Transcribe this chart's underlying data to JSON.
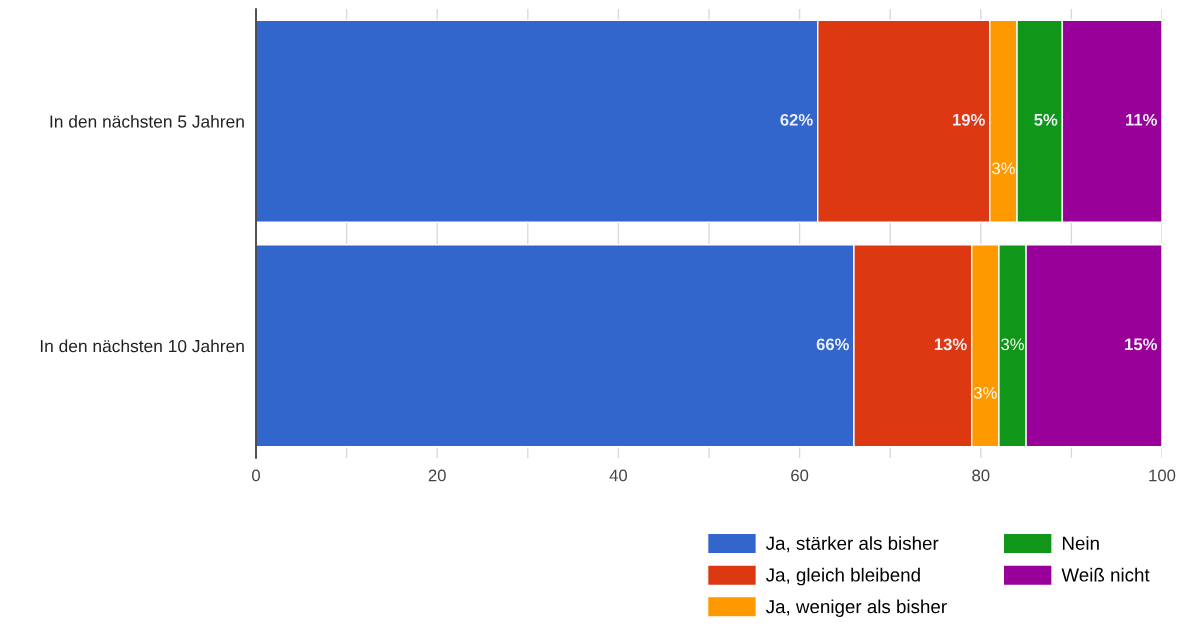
{
  "chart_data": {
    "type": "bar",
    "orientation": "horizontal",
    "stacked": true,
    "categories": [
      "In den nächsten 5 Jahren",
      "In den nächsten 10 Jahren"
    ],
    "series": [
      {
        "name": "Ja, stärker als bisher",
        "color": "#3366cc",
        "values": [
          62,
          66
        ],
        "value_labels": [
          "62%",
          "66%"
        ]
      },
      {
        "name": "Ja, gleich bleibend",
        "color": "#dc3912",
        "values": [
          19,
          13
        ],
        "value_labels": [
          "19%",
          "13%"
        ]
      },
      {
        "name": "Ja, weniger als bisher",
        "color": "#ff9900",
        "values": [
          3,
          3
        ],
        "value_labels": [
          "3%",
          "3%"
        ]
      },
      {
        "name": "Nein",
        "color": "#109618",
        "values": [
          5,
          3
        ],
        "value_labels": [
          "5%",
          "3%"
        ]
      },
      {
        "name": "Weiß nicht",
        "color": "#990099",
        "values": [
          11,
          15
        ],
        "value_labels": [
          "11%",
          "15%"
        ]
      }
    ],
    "xlim": [
      0,
      100
    ],
    "xticks": [
      0,
      {
        "value": 10,
        "label": null
      },
      20,
      {
        "value": 30,
        "label": null
      },
      40,
      {
        "value": 50,
        "label": null
      },
      60,
      {
        "value": 70,
        "label": null
      },
      80,
      {
        "value": 90,
        "label": null
      },
      100
    ],
    "grid": "x",
    "legend": "bottom right"
  }
}
